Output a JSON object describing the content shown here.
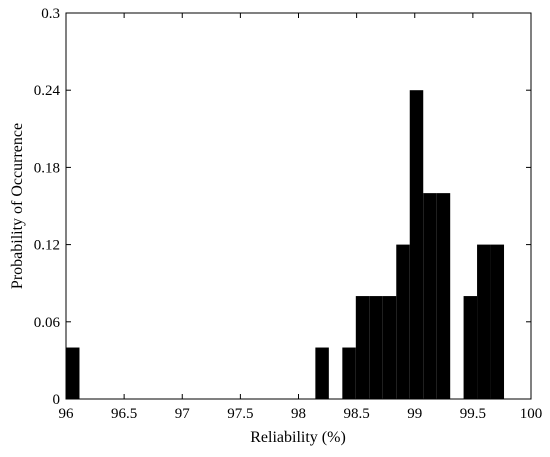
{
  "chart_data": {
    "type": "bar",
    "title": "",
    "xlabel": "Reliability (%)",
    "ylabel": "Probability of  Occurrence",
    "xlim": [
      96,
      100
    ],
    "ylim": [
      0,
      0.3
    ],
    "grid": false,
    "xticks": [
      "96",
      "96.5",
      "97",
      "97.5",
      "98",
      "98.5",
      "99",
      "99.5",
      "100"
    ],
    "yticks": [
      "0",
      "0.06",
      "0.12",
      "0.18",
      "0.24",
      "0.3"
    ],
    "bin_width": 0.116,
    "bars": [
      {
        "x0": 96.0,
        "value": 0.04
      },
      {
        "x0": 98.145,
        "value": 0.04
      },
      {
        "x0": 98.377,
        "value": 0.04
      },
      {
        "x0": 98.493,
        "value": 0.08
      },
      {
        "x0": 98.609,
        "value": 0.08
      },
      {
        "x0": 98.725,
        "value": 0.08
      },
      {
        "x0": 98.841,
        "value": 0.12
      },
      {
        "x0": 98.957,
        "value": 0.24
      },
      {
        "x0": 99.073,
        "value": 0.16
      },
      {
        "x0": 99.189,
        "value": 0.16
      },
      {
        "x0": 99.42,
        "value": 0.08
      },
      {
        "x0": 99.536,
        "value": 0.12
      },
      {
        "x0": 99.652,
        "value": 0.12
      }
    ]
  }
}
